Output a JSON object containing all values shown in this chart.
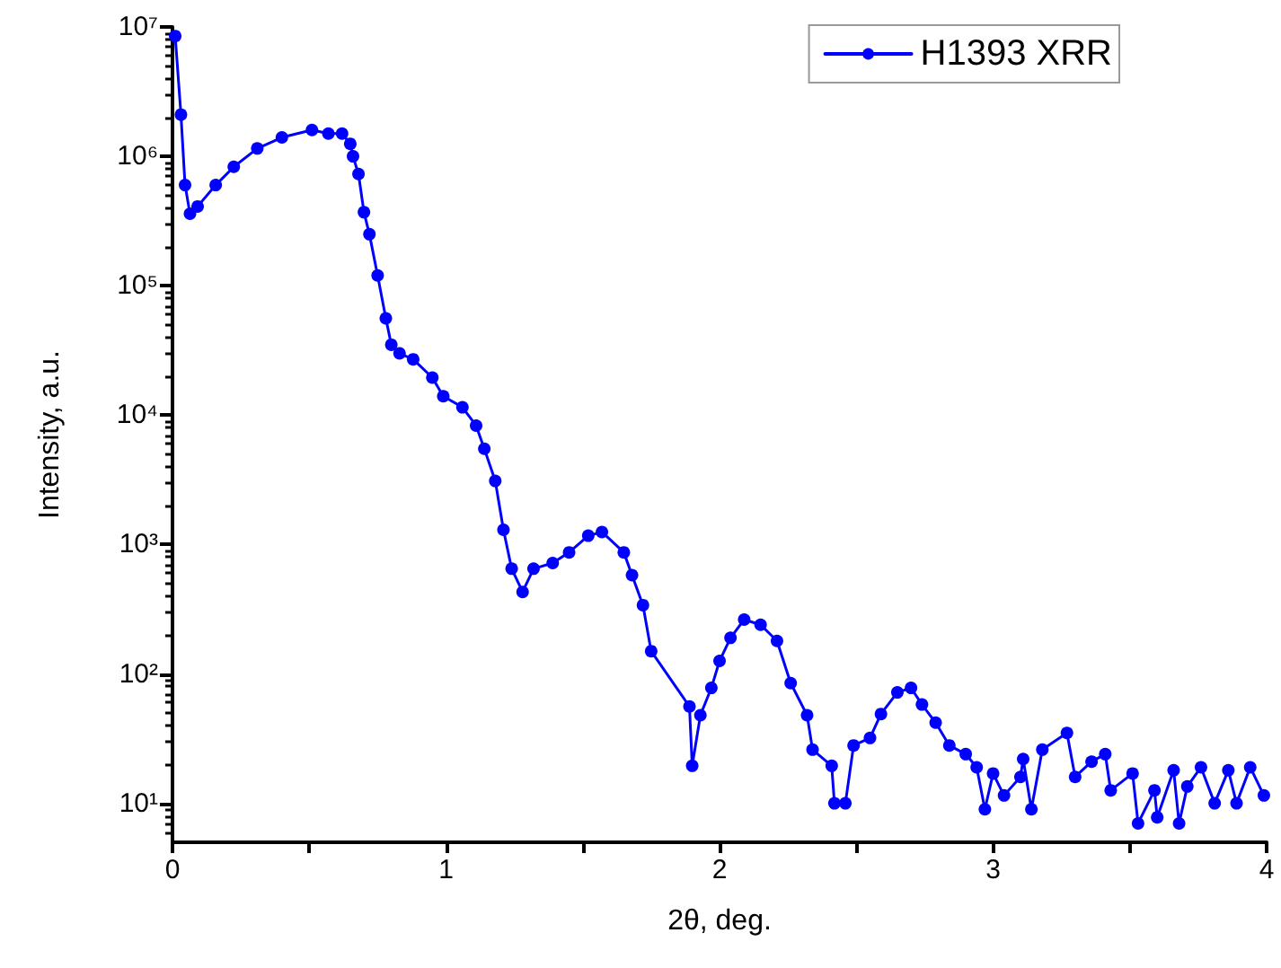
{
  "chart_data": {
    "type": "line",
    "xlabel": "2θ, deg.",
    "ylabel": "Intensity, a.u.",
    "log": "y",
    "grid": false,
    "legend": "top right",
    "marker": "circle",
    "line_style": "solid",
    "xlim": [
      0,
      4
    ],
    "xticks": [
      0,
      {
        "value": 0.5,
        "label": null
      },
      1,
      {
        "value": 1.5,
        "label": null
      },
      2,
      {
        "value": 2.5,
        "label": null
      },
      3,
      {
        "value": 3.5,
        "label": null
      },
      4
    ],
    "ylim": [
      5,
      10000000
    ],
    "yticks": [
      {
        "value": 10,
        "label": "10¹"
      },
      {
        "value": 100,
        "label": "10²"
      },
      {
        "value": 1000,
        "label": "10³"
      },
      {
        "value": 10000,
        "label": "10⁴"
      },
      {
        "value": 100000,
        "label": "10⁵"
      },
      {
        "value": 1000000,
        "label": "10⁶"
      },
      {
        "value": 10000000,
        "label": "10⁷"
      }
    ],
    "series": [
      {
        "name": "H1393 XRR",
        "color": "#0000ff",
        "x": [
          0.01,
          0.031,
          0.046,
          0.064,
          0.092,
          0.158,
          0.224,
          0.31,
          0.4,
          0.51,
          0.57,
          0.62,
          0.65,
          0.66,
          0.68,
          0.7,
          0.72,
          0.75,
          0.78,
          0.8,
          0.83,
          0.88,
          0.95,
          0.99,
          1.06,
          1.11,
          1.14,
          1.18,
          1.21,
          1.24,
          1.28,
          1.32,
          1.39,
          1.45,
          1.52,
          1.57,
          1.65,
          1.68,
          1.72,
          1.75,
          1.89,
          1.9,
          1.93,
          1.97,
          2.0,
          2.04,
          2.09,
          2.15,
          2.21,
          2.26,
          2.32,
          2.34,
          2.41,
          2.42,
          2.46,
          2.49,
          2.55,
          2.59,
          2.65,
          2.7,
          2.74,
          2.79,
          2.84,
          2.9,
          2.94,
          2.97,
          3.0,
          3.04,
          3.1,
          3.11,
          3.14,
          3.18,
          3.27,
          3.3,
          3.36,
          3.41,
          3.43,
          3.51,
          3.53,
          3.59,
          3.6,
          3.66,
          3.68,
          3.71,
          3.76,
          3.81,
          3.86,
          3.89,
          3.94,
          3.99
        ],
        "values": [
          8500000,
          2100000,
          600000,
          360000,
          410000,
          600000,
          830000,
          1150000,
          1400000,
          1600000,
          1500000,
          1500000,
          1250000,
          1000000,
          730000,
          370000,
          250000,
          120000,
          56000,
          35000,
          30000,
          27000,
          19500,
          14000,
          11500,
          8300,
          5500,
          3100,
          1300,
          650,
          430,
          650,
          720,
          870,
          1170,
          1250,
          870,
          580,
          340,
          150,
          56,
          19.5,
          48,
          78,
          126,
          190,
          263,
          240,
          180,
          85,
          48,
          26,
          19.5,
          10,
          10,
          28,
          32,
          49,
          72,
          78,
          58,
          42,
          28,
          24,
          19,
          9,
          17,
          11.5,
          16,
          22,
          9,
          26,
          35,
          16,
          21,
          24,
          12.6,
          17,
          7,
          12.6,
          7.8,
          18,
          7,
          13.5,
          19,
          10,
          18,
          10,
          19,
          11.5
        ]
      }
    ]
  }
}
